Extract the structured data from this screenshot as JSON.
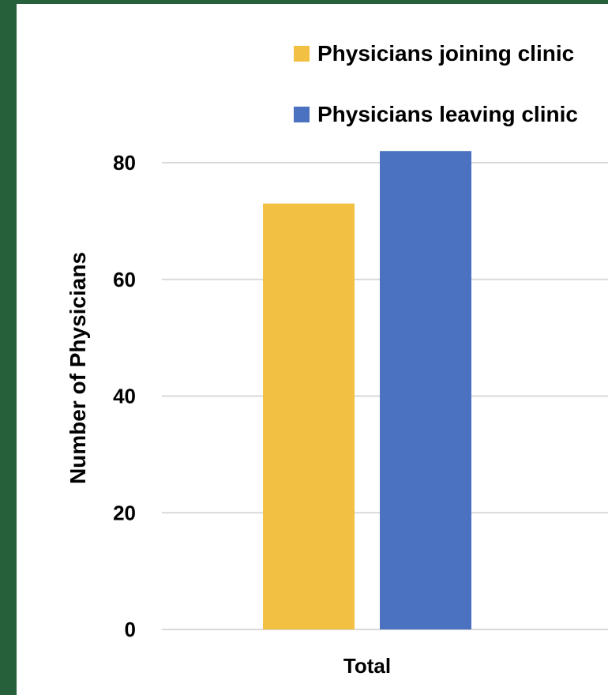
{
  "chart_data": {
    "type": "bar",
    "categories": [
      "Total"
    ],
    "series": [
      {
        "name": "Physicians joining clinic",
        "values": [
          73
        ],
        "color": "#f2c043"
      },
      {
        "name": "Physicians leaving clinic",
        "values": [
          82
        ],
        "color": "#4a72c0"
      }
    ],
    "ylabel": "Number of Physicians",
    "xlabel": "",
    "ylim": [
      0,
      80
    ],
    "yticks": [
      "0",
      "20",
      "40",
      "60",
      "80"
    ],
    "grid": true,
    "legend_position": "top"
  },
  "colors": {
    "frame_border": "#25603a",
    "background": "#ffffff",
    "grid": "#d9d9d9"
  }
}
